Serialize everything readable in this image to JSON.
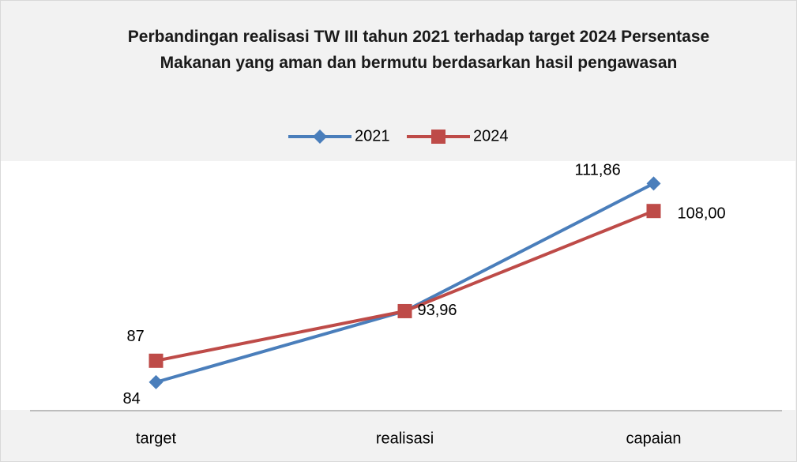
{
  "chart_data": {
    "type": "line",
    "title": "Perbandingan realisasi TW III tahun 2021 terhadap target 2024 Persentase Makanan yang aman dan bermutu berdasarkan hasil pengawasan",
    "categories": [
      "target",
      "realisasi",
      "capaian"
    ],
    "series": [
      {
        "name": "2021",
        "color": "#4a7ebb",
        "marker": "diamond",
        "values": [
          84,
          93.96,
          111.86
        ],
        "value_labels": [
          "84",
          "93,96",
          "111,86"
        ]
      },
      {
        "name": "2024",
        "color": "#be4b48",
        "marker": "square",
        "values": [
          87,
          93.96,
          108
        ],
        "value_labels": [
          "87",
          null,
          "108,00"
        ]
      }
    ],
    "ylim": [
      80,
      115
    ],
    "legend": "top"
  }
}
